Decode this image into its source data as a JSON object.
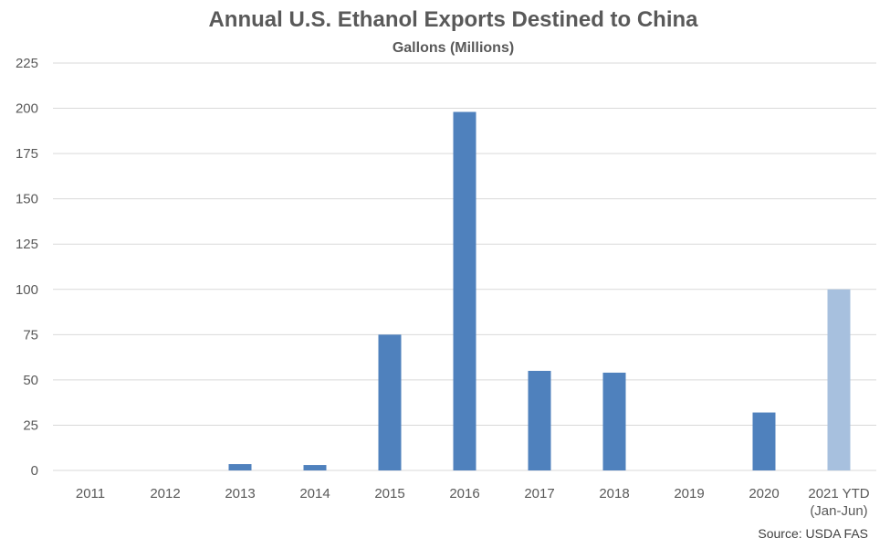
{
  "chart_data": {
    "type": "bar",
    "title": "Annual U.S. Ethanol Exports Destined to China",
    "subtitle": "Gallons (Millions)",
    "xlabel": "",
    "ylabel": "",
    "ylim": [
      0,
      225
    ],
    "yticks": [
      0,
      25,
      50,
      75,
      100,
      125,
      150,
      175,
      200,
      225
    ],
    "grid": true,
    "categories": [
      "2011",
      "2012",
      "2013",
      "2014",
      "2015",
      "2016",
      "2017",
      "2018",
      "2019",
      "2020",
      "2021 YTD\n(Jan-Jun)"
    ],
    "values": [
      0,
      0,
      3.5,
      3,
      75,
      198,
      55,
      54,
      0,
      32,
      100
    ],
    "bar_color": "#4F81BD",
    "highlight_color": "#A7C0DE",
    "highlight_categories": [
      "2021 YTD\n(Jan-Jun)"
    ]
  },
  "source": "Source: USDA FAS"
}
